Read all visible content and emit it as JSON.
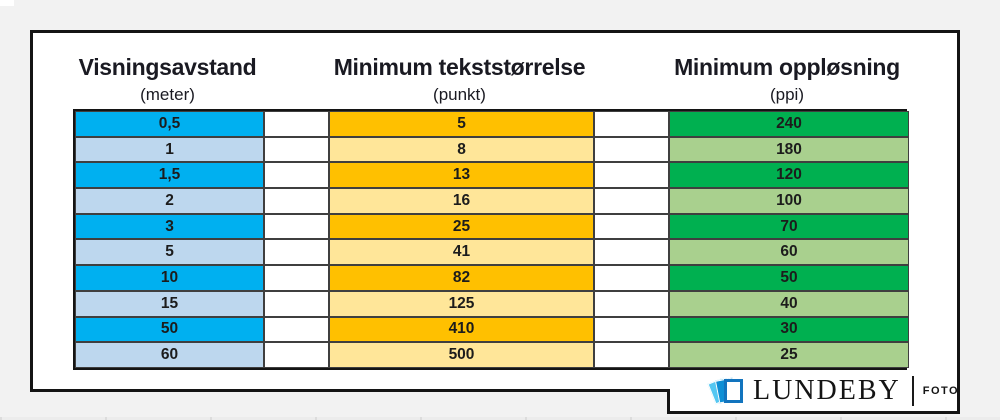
{
  "page": {
    "background_color": "#f2f2f2",
    "panel_border_color": "#141414"
  },
  "table": {
    "columns": [
      {
        "id": "viewing-distance",
        "title": "Visningsavstand",
        "unit": "(meter)",
        "strong_color": "#00B0F0",
        "light_color": "#BDD7EE",
        "values": [
          "0,5",
          "1",
          "1,5",
          "2",
          "3",
          "5",
          "10",
          "15",
          "50",
          "60"
        ]
      },
      {
        "id": "min-text-size",
        "title": "Minimum tekststørrelse",
        "unit": "(punkt)",
        "strong_color": "#FFC000",
        "light_color": "#FFE699",
        "values": [
          "5",
          "8",
          "13",
          "16",
          "25",
          "41",
          "82",
          "125",
          "410",
          "500"
        ]
      },
      {
        "id": "min-resolution",
        "title": "Minimum oppløsning",
        "unit": "(ppi)",
        "strong_color": "#00B050",
        "light_color": "#A9D08E",
        "values": [
          "240",
          "180",
          "120",
          "100",
          "70",
          "60",
          "50",
          "40",
          "30",
          "25"
        ]
      }
    ]
  },
  "logo": {
    "name": "LUNDEBY",
    "suffix": "FOTO",
    "icon": "photo-stack-icon",
    "icon_colors": [
      "#54c7f2",
      "#0e8fd5",
      "#1274be"
    ]
  },
  "chart_data": {
    "type": "table",
    "title": "",
    "columns": [
      "Visningsavstand (meter)",
      "Minimum tekststørrelse (punkt)",
      "Minimum oppløsning (ppi)"
    ],
    "rows": [
      [
        "0,5",
        "5",
        "240"
      ],
      [
        "1",
        "8",
        "180"
      ],
      [
        "1,5",
        "13",
        "120"
      ],
      [
        "2",
        "16",
        "100"
      ],
      [
        "3",
        "25",
        "70"
      ],
      [
        "5",
        "41",
        "60"
      ],
      [
        "10",
        "82",
        "50"
      ],
      [
        "15",
        "125",
        "40"
      ],
      [
        "50",
        "410",
        "30"
      ],
      [
        "60",
        "500",
        "25"
      ]
    ],
    "row_striping": "alternating strong/light fills per column hue (cyan, gold, green)"
  }
}
